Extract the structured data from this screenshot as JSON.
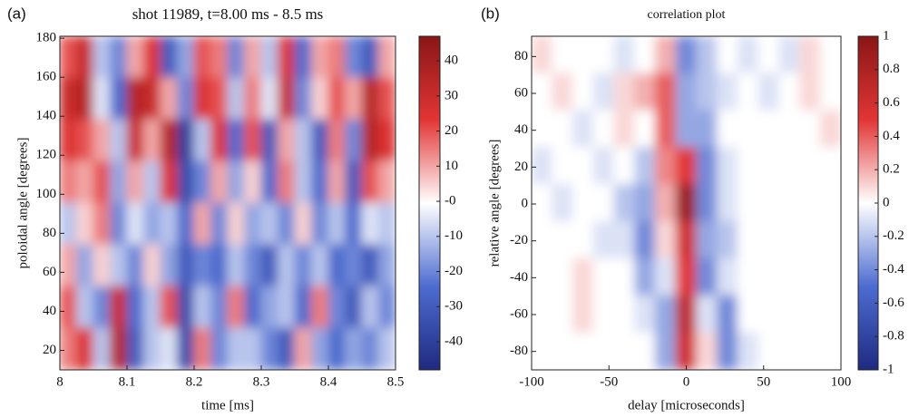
{
  "chart_data": [
    {
      "type": "heatmap",
      "panel_label": "(a)",
      "title": "shot 11989, t=8.00 ms - 8.5 ms",
      "x_label": "time [ms]",
      "y_label": "poloidal angle [degrees]",
      "xlim": [
        8,
        8.5
      ],
      "xticks": [
        8,
        8.1,
        8.2,
        8.3,
        8.4,
        8.5
      ],
      "ylim": [
        10,
        181
      ],
      "yticks": [
        20,
        40,
        60,
        80,
        100,
        120,
        140,
        160,
        180
      ],
      "colormap": [
        "#1f2a80",
        "#4d6cd0",
        "#ffffff",
        "#e23535",
        "#8a1616"
      ],
      "zlim": [
        -48,
        47
      ],
      "zticks": [
        40,
        30,
        20,
        10,
        {
          "value": 0,
          "label": "-0"
        },
        -10,
        -20,
        -30,
        -40
      ],
      "z": [
        [
          20,
          30,
          -10,
          -20,
          10,
          25,
          -30,
          -15,
          20,
          15,
          -20,
          10,
          -10,
          25,
          -25,
          10,
          15,
          -20,
          -30,
          10
        ],
        [
          30,
          35,
          -5,
          -25,
          35,
          30,
          10,
          -20,
          25,
          20,
          -10,
          15,
          -5,
          30,
          -20,
          5,
          20,
          10,
          35,
          20
        ],
        [
          25,
          20,
          10,
          -10,
          30,
          10,
          35,
          -40,
          -10,
          25,
          -25,
          20,
          -30,
          10,
          -10,
          -30,
          15,
          -20,
          35,
          25
        ],
        [
          15,
          10,
          20,
          -15,
          10,
          -10,
          25,
          -35,
          -20,
          10,
          -15,
          5,
          -25,
          15,
          -10,
          -25,
          10,
          -30,
          20,
          10
        ],
        [
          -10,
          5,
          15,
          -20,
          -5,
          -15,
          -10,
          -25,
          10,
          -20,
          5,
          -15,
          -10,
          -20,
          5,
          -20,
          -10,
          -25,
          -5,
          -10
        ],
        [
          10,
          -15,
          5,
          -10,
          -20,
          5,
          -15,
          -30,
          -20,
          -25,
          -10,
          -20,
          -30,
          -10,
          -20,
          -10,
          -25,
          -20,
          -30,
          -15
        ],
        [
          20,
          -10,
          -20,
          30,
          -25,
          -10,
          20,
          -35,
          -10,
          -20,
          15,
          -25,
          -15,
          -10,
          -25,
          15,
          -20,
          -30,
          -10,
          -20
        ],
        [
          15,
          25,
          -10,
          35,
          -30,
          -10,
          -5,
          -35,
          15,
          -20,
          -10,
          -10,
          -20,
          -30,
          10,
          -15,
          -25,
          -15,
          -20,
          -10
        ]
      ]
    },
    {
      "type": "heatmap",
      "panel_label": "(b)",
      "title": "correlation plot",
      "x_label": "delay [microseconds]",
      "y_label": "relative angle [degrees]",
      "xlim": [
        -100,
        100
      ],
      "xticks": [
        -100,
        -50,
        0,
        50,
        100
      ],
      "ylim": [
        -90,
        91
      ],
      "yticks": [
        -80,
        -60,
        -40,
        -20,
        0,
        20,
        40,
        60,
        80
      ],
      "colormap": [
        "#1f2a80",
        "#4d6cd0",
        "#ffffff",
        "#e23535",
        "#8a1616"
      ],
      "zlim": [
        -1,
        1
      ],
      "zticks": [
        1,
        0.8,
        0.6,
        0.4,
        0.2,
        0,
        -0.2,
        -0.4,
        -0.6,
        -0.8,
        -1
      ],
      "z": [
        [
          0.1,
          0,
          0,
          0,
          -0.1,
          0,
          0.2,
          -0.4,
          -0.2,
          0,
          -0.1,
          0,
          -0.1,
          0.1,
          0
        ],
        [
          0,
          0.1,
          0,
          -0.1,
          0.1,
          0.2,
          0.4,
          -0.3,
          -0.2,
          -0.1,
          0,
          -0.1,
          0,
          0.1,
          0
        ],
        [
          0,
          0,
          -0.1,
          0,
          0.1,
          0,
          0.4,
          -0.3,
          -0.3,
          0,
          0,
          0,
          0,
          0,
          0.1
        ],
        [
          -0.1,
          0,
          0,
          -0.1,
          0,
          -0.2,
          0.3,
          0.5,
          -0.4,
          -0.1,
          0,
          0,
          0,
          0,
          0
        ],
        [
          0,
          -0.1,
          0,
          0,
          -0.2,
          -0.3,
          0.2,
          0.9,
          -0.4,
          -0.1,
          0,
          0,
          0,
          0,
          0
        ],
        [
          0,
          0,
          0,
          -0.1,
          -0.1,
          -0.4,
          0.1,
          0.6,
          -0.3,
          -0.2,
          0,
          0,
          0,
          0,
          0
        ],
        [
          0,
          0,
          0.1,
          0,
          0,
          -0.3,
          -0.1,
          0.5,
          -0.4,
          -0.1,
          0,
          0,
          0,
          0,
          0
        ],
        [
          0,
          0,
          0.1,
          0,
          0,
          -0.1,
          -0.3,
          0.7,
          -0.1,
          -0.4,
          0,
          0,
          0,
          0,
          0
        ],
        [
          0,
          0,
          0,
          0,
          0,
          0,
          -0.3,
          0.6,
          0.1,
          -0.4,
          -0.1,
          0,
          0,
          0,
          0
        ]
      ]
    }
  ]
}
